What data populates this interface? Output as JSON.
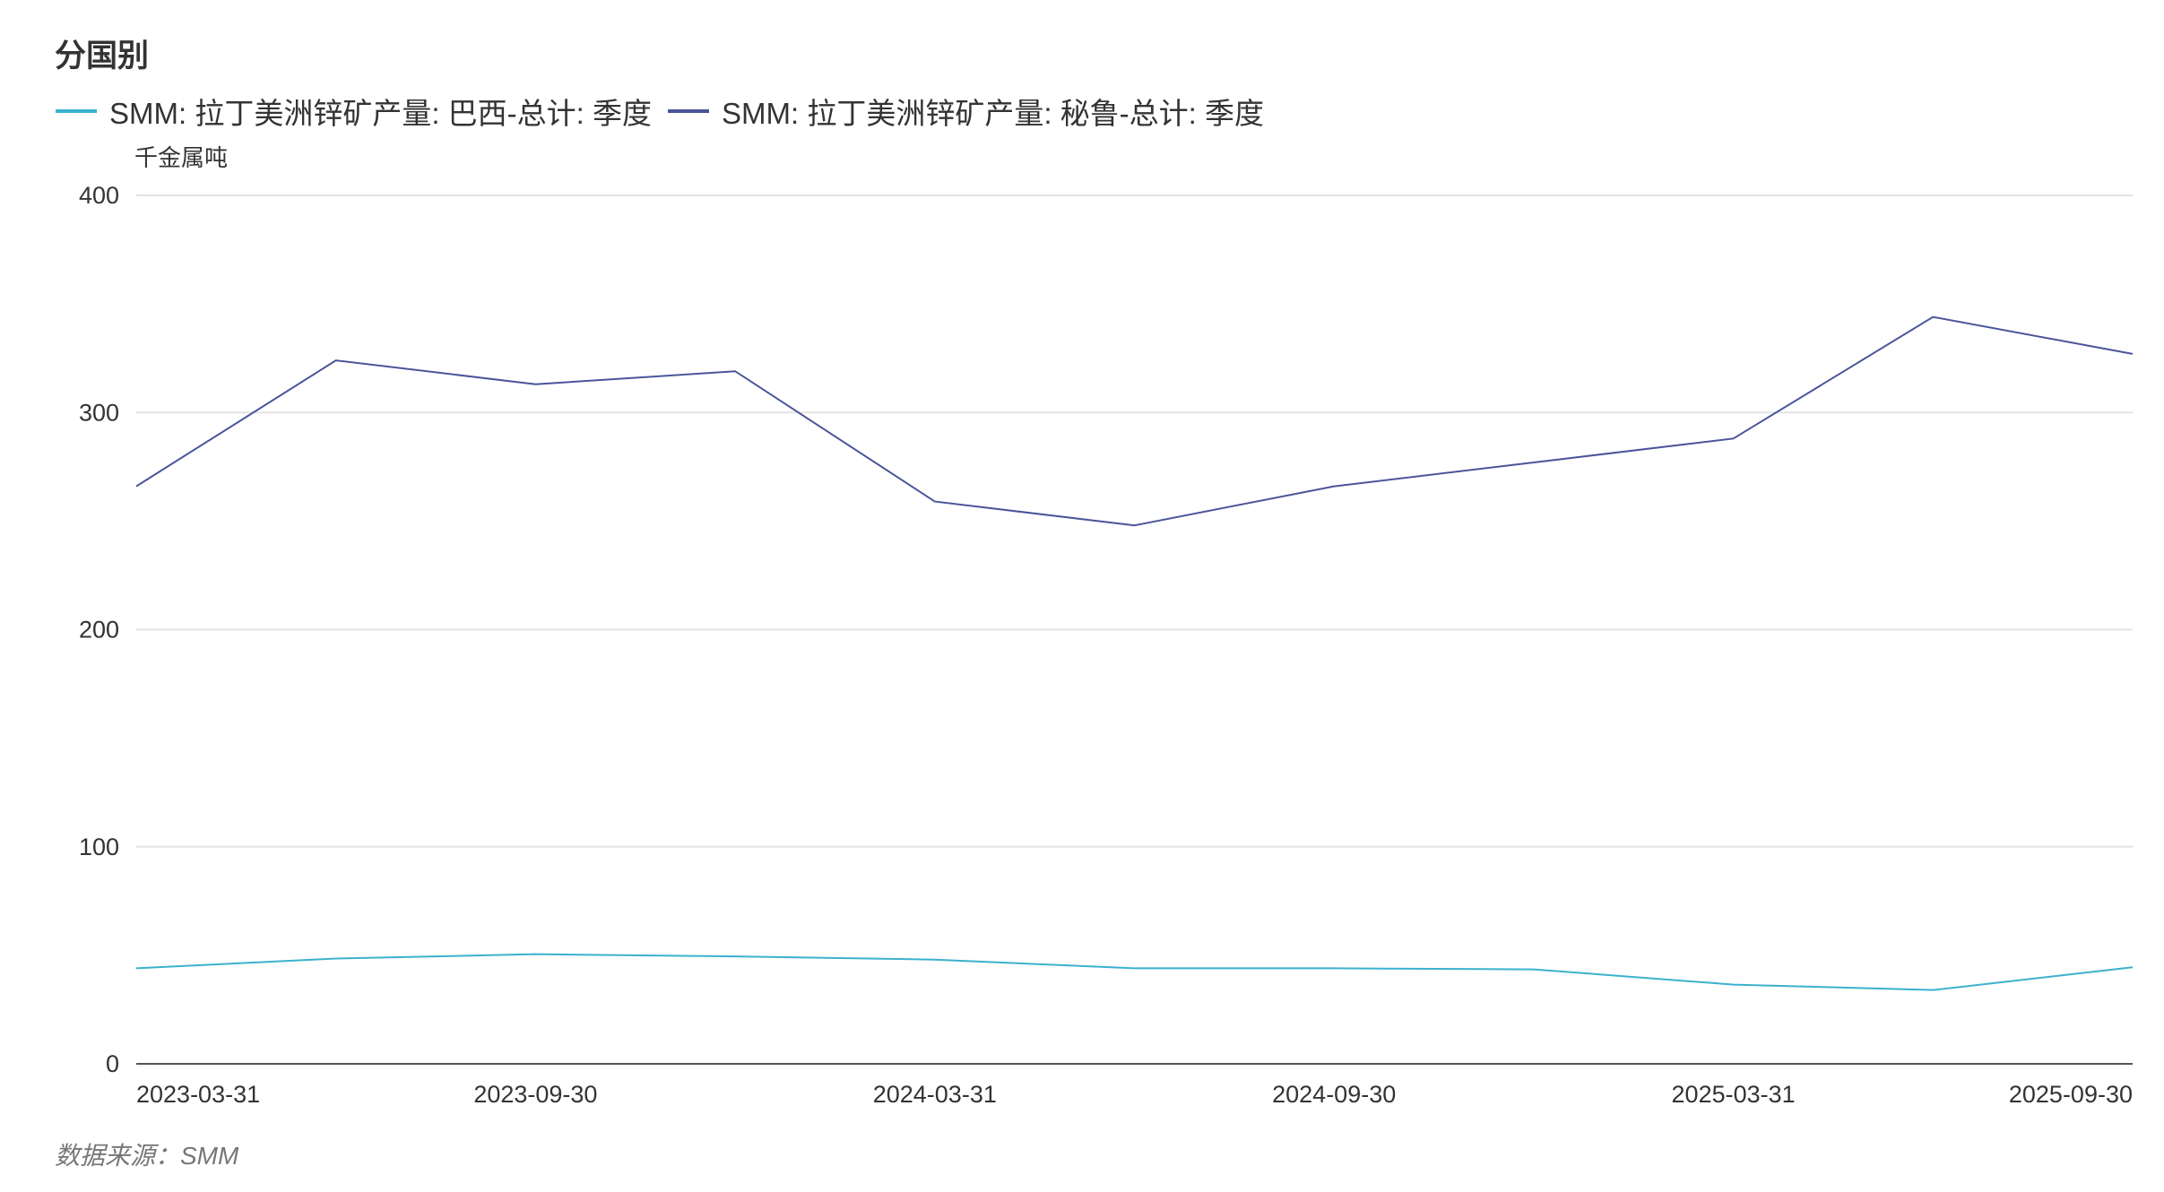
{
  "title": "分国别",
  "source": "数据来源：SMM",
  "chart_data": {
    "type": "line",
    "title": "分国别",
    "ylabel": "千金属吨",
    "xlabel": "",
    "ylim": [
      0,
      400
    ],
    "yticks": [
      "0",
      "100",
      "200",
      "300",
      "400"
    ],
    "x": [
      "2023-03-31",
      "2023-06-30",
      "2023-09-30",
      "2023-12-31",
      "2024-03-31",
      "2024-06-30",
      "2024-09-30",
      "2024-12-31",
      "2025-03-31",
      "2025-06-30",
      "2025-09-30"
    ],
    "xtick_labels": [
      "2023-03-31",
      "2023-09-30",
      "2024-03-31",
      "2024-09-30",
      "2025-03-31",
      "2025-09-30"
    ],
    "grid": true,
    "legend_position": "top-left",
    "series": [
      {
        "name": "SMM: 拉丁美洲锌矿产量: 巴西-总计: 季度",
        "color": "#3bb1cd",
        "values": [
          44,
          48.5,
          50.5,
          49.5,
          48,
          44,
          44,
          43.5,
          36.5,
          34,
          44.5
        ]
      },
      {
        "name": "SMM: 拉丁美洲锌矿产量: 秘鲁-总计: 季度",
        "color": "#4a5599",
        "values": [
          266,
          324,
          313,
          319,
          259,
          248,
          266,
          277,
          288,
          344,
          327
        ]
      }
    ]
  }
}
